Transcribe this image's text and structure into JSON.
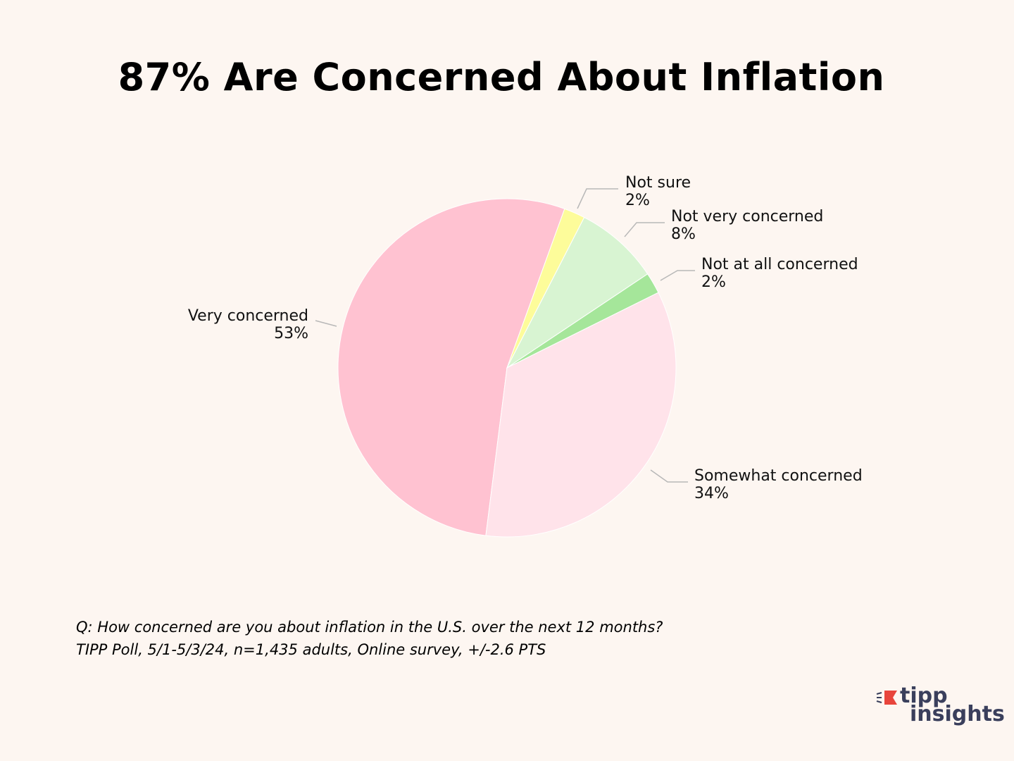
{
  "chart_data": {
    "type": "pie",
    "title": "87% Are Concerned About Inflation",
    "slices": [
      {
        "label": "Very concerned",
        "value": 53,
        "value_label": "53%",
        "color": "#ffc2d1"
      },
      {
        "label": "Not sure",
        "value": 2,
        "value_label": "2%",
        "color": "#fdfc9a"
      },
      {
        "label": "Not very concerned",
        "value": 8,
        "value_label": "8%",
        "color": "#d8f4d2"
      },
      {
        "label": "Not at all concerned",
        "value": 2,
        "value_label": "2%",
        "color": "#a5e69a"
      },
      {
        "label": "Somewhat concerned",
        "value": 34,
        "value_label": "34%",
        "color": "#ffe3ea"
      }
    ],
    "legend": "none"
  },
  "footnote": {
    "question": "Q:  How concerned are you about inflation in the U.S. over the next 12 months?",
    "source": "TIPP Poll, 5/1-5/3/24, n=1,435 adults, Online survey, +/-2.6 PTS"
  },
  "logo": {
    "word1": "tipp",
    "word2": "insights",
    "accent_color": "#e8453c",
    "text_color": "#3a3f5c"
  }
}
